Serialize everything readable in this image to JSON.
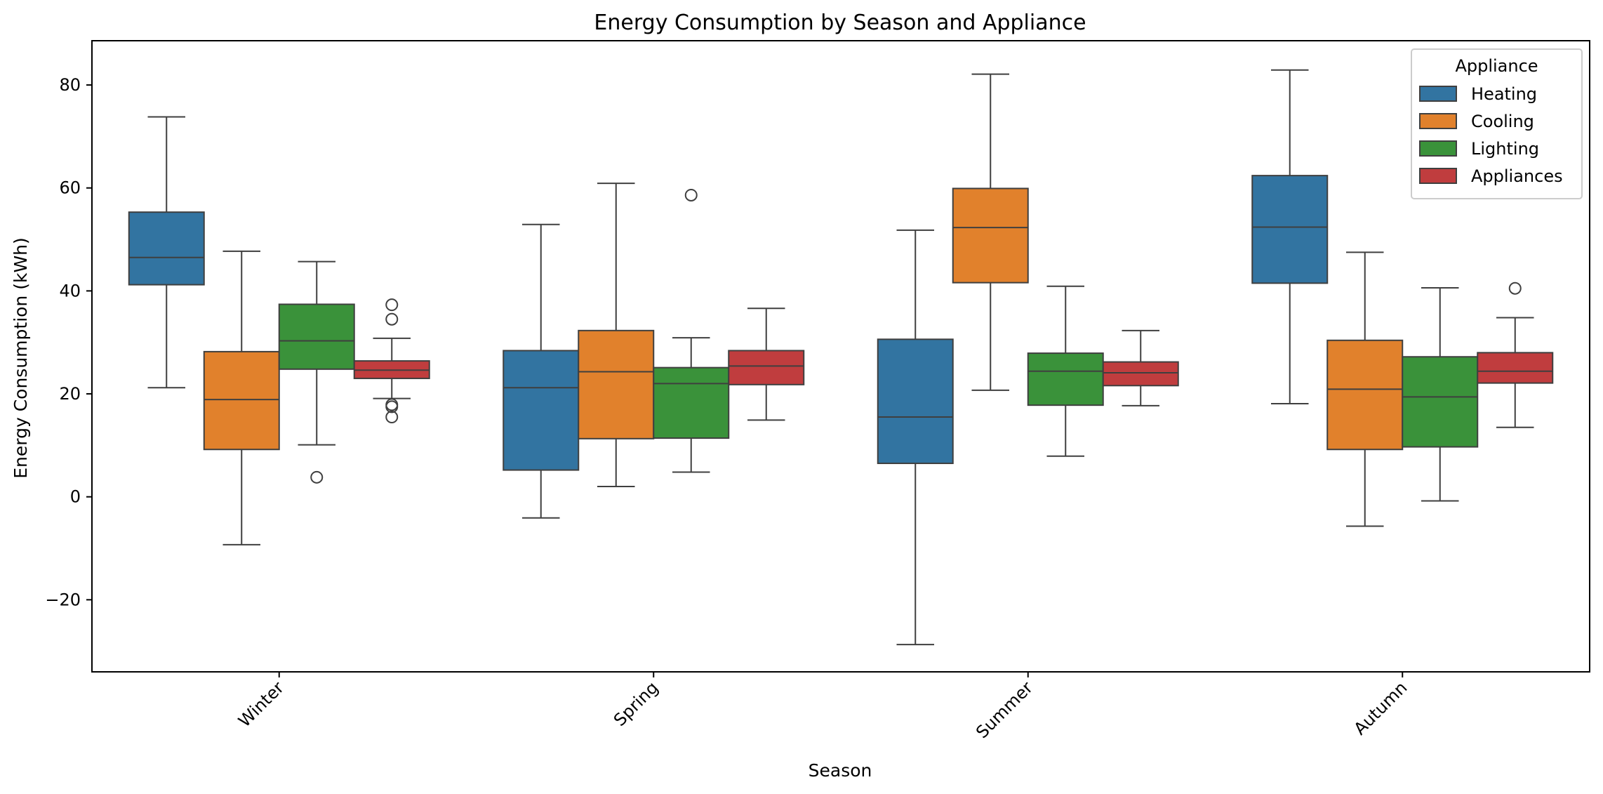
{
  "chart_data": {
    "type": "box",
    "title": "Energy Consumption by Season and Appliance",
    "xlabel": "Season",
    "ylabel": "Energy Consumption (kWh)",
    "ylim": [
      -34,
      88.6
    ],
    "yticks": [
      -20,
      0,
      20,
      40,
      60,
      80
    ],
    "ytick_labels": [
      "−20",
      "0",
      "20",
      "40",
      "60",
      "80"
    ],
    "categories": [
      "Winter",
      "Spring",
      "Summer",
      "Autumn"
    ],
    "grid": false,
    "legend": {
      "title": "Appliance",
      "placement": "top-right"
    },
    "series": [
      {
        "name": "Heating",
        "color": "#3274a1",
        "boxes": [
          {
            "whislo": 21.2,
            "q1": 41.2,
            "med": 46.5,
            "q3": 55.3,
            "whishi": 73.8,
            "fliers": []
          },
          {
            "whislo": -4.1,
            "q1": 5.2,
            "med": 21.2,
            "q3": 28.4,
            "whishi": 52.9,
            "fliers": []
          },
          {
            "whislo": -28.7,
            "q1": 6.5,
            "med": 15.5,
            "q3": 30.6,
            "whishi": 51.8,
            "fliers": []
          },
          {
            "whislo": 18.1,
            "q1": 41.5,
            "med": 52.4,
            "q3": 62.4,
            "whishi": 82.9,
            "fliers": []
          }
        ]
      },
      {
        "name": "Cooling",
        "color": "#e1812c",
        "boxes": [
          {
            "whislo": -9.3,
            "q1": 9.2,
            "med": 18.9,
            "q3": 28.2,
            "whishi": 47.7,
            "fliers": []
          },
          {
            "whislo": 2.0,
            "q1": 11.3,
            "med": 24.3,
            "q3": 32.3,
            "whishi": 60.9,
            "fliers": []
          },
          {
            "whislo": 20.7,
            "q1": 41.6,
            "med": 52.3,
            "q3": 59.9,
            "whishi": 82.1,
            "fliers": []
          },
          {
            "whislo": -5.7,
            "q1": 9.2,
            "med": 20.9,
            "q3": 30.4,
            "whishi": 47.5,
            "fliers": []
          }
        ]
      },
      {
        "name": "Lighting",
        "color": "#3a923a",
        "boxes": [
          {
            "whislo": 10.1,
            "q1": 24.8,
            "med": 30.3,
            "q3": 37.4,
            "whishi": 45.7,
            "fliers": [
              3.8
            ]
          },
          {
            "whislo": 4.8,
            "q1": 11.4,
            "med": 22.0,
            "q3": 25.1,
            "whishi": 30.9,
            "fliers": [
              58.6
            ]
          },
          {
            "whislo": 7.9,
            "q1": 17.8,
            "med": 24.4,
            "q3": 27.9,
            "whishi": 40.9,
            "fliers": []
          },
          {
            "whislo": -0.8,
            "q1": 9.7,
            "med": 19.4,
            "q3": 27.2,
            "whishi": 40.6,
            "fliers": []
          }
        ]
      },
      {
        "name": "Appliances",
        "color": "#c03d3e",
        "boxes": [
          {
            "whislo": 19.1,
            "q1": 23.0,
            "med": 24.6,
            "q3": 26.4,
            "whishi": 30.8,
            "fliers": [
              37.3,
              34.5,
              17.9,
              17.5,
              15.5
            ]
          },
          {
            "whislo": 14.9,
            "q1": 21.8,
            "med": 25.4,
            "q3": 28.4,
            "whishi": 36.6,
            "fliers": []
          },
          {
            "whislo": 17.7,
            "q1": 21.6,
            "med": 24.1,
            "q3": 26.2,
            "whishi": 32.3,
            "fliers": []
          },
          {
            "whislo": 13.5,
            "q1": 22.1,
            "med": 24.4,
            "q3": 28.0,
            "whishi": 34.8,
            "fliers": [
              40.5
            ]
          }
        ]
      }
    ]
  }
}
